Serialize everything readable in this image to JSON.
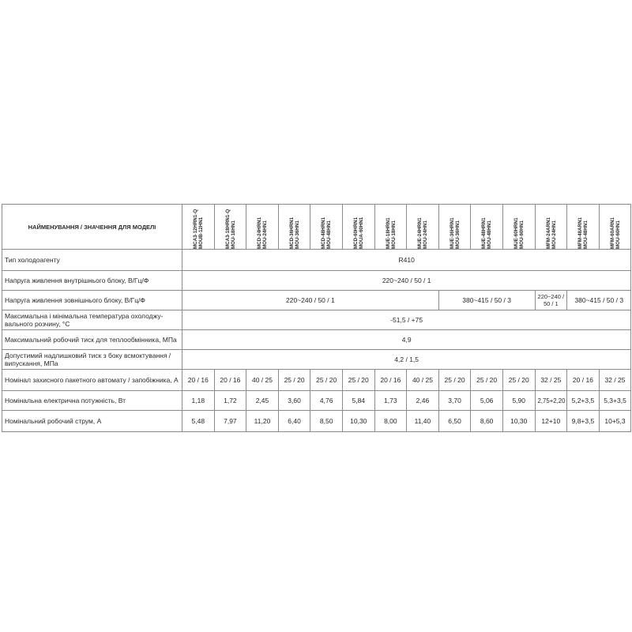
{
  "header": {
    "label": "НАЙМЕНУВАННЯ / ЗНАЧЕННЯ ДЛЯ МОДЕЛІ",
    "models": [
      [
        "MCA3-12HRN1-Q",
        "MOUB-12HN1"
      ],
      [
        "MCA3-18HRN1-Q",
        "MOU-18HN1"
      ],
      [
        "MCD-24HRN1",
        "MOU-24HN1"
      ],
      [
        "MCD-36HRN1",
        "MOU-36HN1"
      ],
      [
        "MCD-48HRN1",
        "MOU-48HN1"
      ],
      [
        "MCD-60HRN1",
        "MOUA-60HN1"
      ],
      [
        "MUE-18HRN1",
        "MOU-18HN1"
      ],
      [
        "MUE-24HRN1",
        "MOU-24HN1"
      ],
      [
        "MUE-36HRN1",
        "MOU-36HN1"
      ],
      [
        "MUE-48HRN1",
        "MOU-48HN1"
      ],
      [
        "MUE-60HRN1",
        "MOU-60HN1"
      ],
      [
        "MFM-24ARN1",
        "MOU-24HN1"
      ],
      [
        "MFM-48ARN1",
        "MOU-48HN1"
      ],
      [
        "MFM-60ARN1",
        "MOU-60HN1"
      ]
    ]
  },
  "rows": {
    "refrigerant": {
      "label": "Тип холодоагенту",
      "value": "R410"
    },
    "indoor_power": {
      "label": "Напруга живлення внутрішнього блоку, В/Гц/Ф",
      "value": "220~240 / 50 / 1"
    },
    "outdoor_power": {
      "label": "Напруга живлення зовнішнього блоку, В/Гц/Ф",
      "values": [
        "220~240 / 50 / 1",
        "380~415 / 50 / 3",
        "220~240 / 50 / 1",
        "380~415 / 50 / 3"
      ]
    },
    "temp": {
      "label": "Максимальна і мінімальна температура охолоджу-вального розчину, °С",
      "value": "-51,5  / +75"
    },
    "pressure": {
      "label": "Максимальний робочий тиск для теплообмінника, МПа",
      "value": "4,9"
    },
    "overpressure": {
      "label": "Допустимий надлишковий тиск з боку всмоктування / випускання, МПа",
      "value": "4,2 / 1,5"
    },
    "breaker": {
      "label": "Номінал захисного пакетного автомату / запобіжника, А",
      "values": [
        "20 / 16",
        "20 / 16",
        "40 / 25",
        "25 / 20",
        "25 / 20",
        "25 / 20",
        "20 / 16",
        "40 / 25",
        "25 / 20",
        "25 / 20",
        "25 / 20",
        "32 / 25",
        "20 / 16",
        "32 / 25"
      ]
    },
    "power": {
      "label": "Номінальна електрична потужність, Вт",
      "values": [
        "1,18",
        "1,72",
        "2,45",
        "3,60",
        "4,76",
        "5,84",
        "1,73",
        "2,46",
        "3,70",
        "5,06",
        "5,90",
        "2,75+2,20",
        "5,2+3,5",
        "5,3+3,5"
      ]
    },
    "current": {
      "label": "Номінальний робочий струм, А",
      "values": [
        "5,48",
        "7,97",
        "11,20",
        "6,40",
        "8,50",
        "10,30",
        "8,00",
        "11,40",
        "6,50",
        "8,60",
        "10,30",
        "12+10",
        "9,8+3,5",
        "10+5,3"
      ]
    }
  }
}
